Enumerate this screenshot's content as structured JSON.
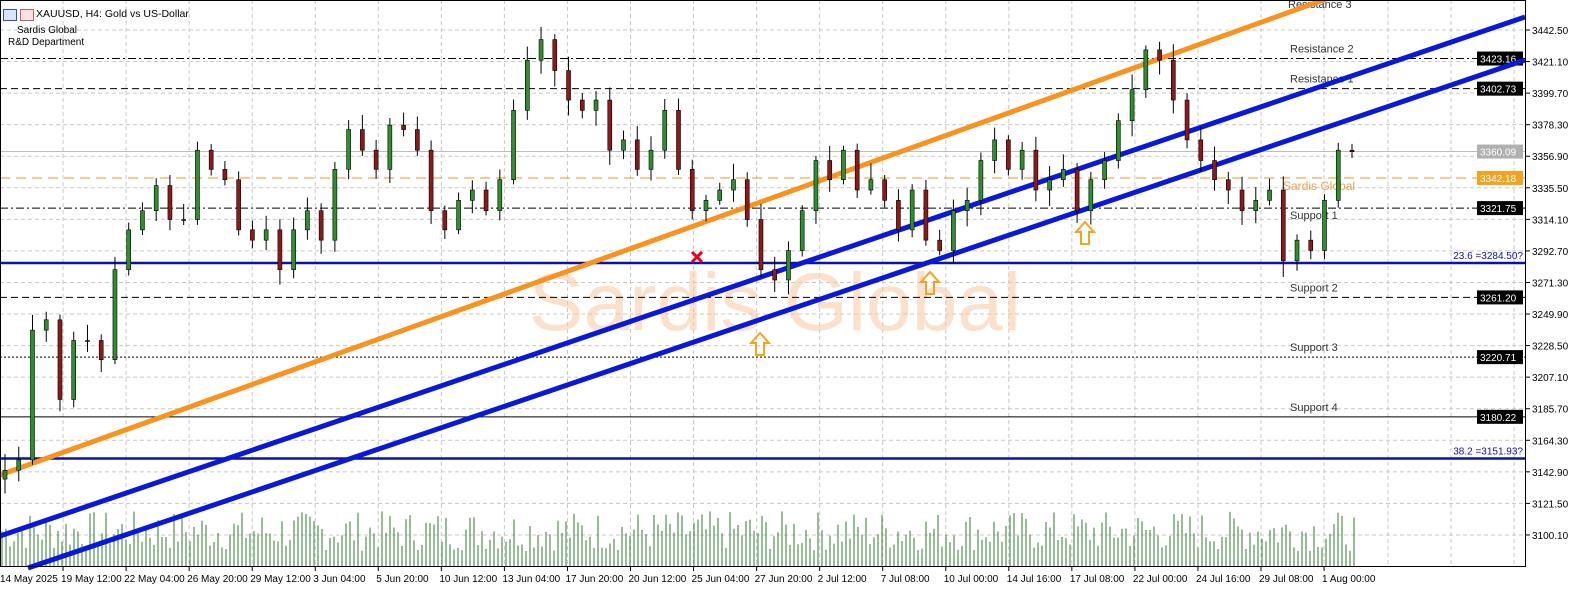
{
  "header": {
    "title": "XAUUSD, H4:  Gold vs US-Dollar",
    "line1": "Sardis Global",
    "line2": "R&D Department",
    "icons": [
      "list-icon",
      "chart-template-icon"
    ]
  },
  "watermark": "Sardis Global",
  "colors": {
    "bull": "#2f8f2f",
    "bear": "#8b1a1a",
    "trend_orange": "#f7931e",
    "trend_blue": "#0a18d8",
    "fib": "#0b12a8",
    "volume": "#2f7a2f",
    "current_price": "#bdbdbd",
    "arrow": "#f7a21e",
    "cross": "#e8001c"
  },
  "chart_data": {
    "type": "candlestick",
    "symbol": "XAUUSD",
    "timeframe": "H4",
    "ylim": [
      3090,
      3458
    ],
    "grid": true,
    "y_ticks": [
      "3442.50",
      "3421.10",
      "3399.70",
      "3378.30",
      "3356.90",
      "3335.50",
      "3314.10",
      "3292.70",
      "3271.30",
      "3249.90",
      "3228.50",
      "3207.10",
      "3185.70",
      "3164.30",
      "3142.90",
      "3121.50",
      "3100.10"
    ],
    "x_ticks": [
      "14 May 2025",
      "19 May 12:00",
      "22 May 04:00",
      "26 May 20:00",
      "29 May 12:00",
      "3 Jun 04:00",
      "5 Jun 20:00",
      "10 Jun 12:00",
      "13 Jun 04:00",
      "17 Jun 20:00",
      "20 Jun 12:00",
      "25 Jun 04:00",
      "27 Jun 20:00",
      "2 Jul 12:00",
      "7 Jul 08:00",
      "10 Jul 00:00",
      "14 Jul 16:00",
      "17 Jul 08:00",
      "22 Jul 00:00",
      "24 Jul 16:00",
      "29 Jul 08:00",
      "1 Aug 00:00"
    ],
    "closes": [
      3144,
      3151,
      3239,
      3246,
      3192,
      3232,
      3232,
      3219,
      3280,
      3307,
      3320,
      3337,
      3314,
      3314,
      3361,
      3348,
      3341,
      3307,
      3300,
      3307,
      3280,
      3307,
      3320,
      3300,
      3348,
      3375,
      3361,
      3348,
      3378,
      3375,
      3361,
      3320,
      3307,
      3327,
      3334,
      3320,
      3341,
      3388,
      3422,
      3436,
      3415,
      3395,
      3388,
      3395,
      3361,
      3368,
      3348,
      3361,
      3388,
      3348,
      3320,
      3327,
      3334,
      3341,
      3314,
      3280,
      3273,
      3293,
      3320,
      3354,
      3341,
      3361,
      3334,
      3341,
      3327,
      3307,
      3334,
      3300,
      3293,
      3320,
      3327,
      3354,
      3368,
      3348,
      3361,
      3334,
      3341,
      3348,
      3320,
      3341,
      3354,
      3381,
      3402,
      3429,
      3422,
      3395,
      3368,
      3354,
      3341,
      3334,
      3320,
      3327,
      3334,
      3286,
      3300,
      3293,
      3327,
      3361,
      3360
    ],
    "price_levels": [
      {
        "label": "Resistance 3",
        "value": null
      },
      {
        "label": "Resistance 2",
        "value": "3423.16",
        "style": "dashdot"
      },
      {
        "label": "Resistance 1",
        "value": "3402.73",
        "style": "dashed"
      },
      {
        "label": "Sardis Global",
        "value": "3342.18",
        "style": "orange-dashed"
      },
      {
        "label": "Support 1",
        "value": "3321.75",
        "style": "dashdot"
      },
      {
        "label": "Support 2",
        "value": "3261.20",
        "style": "dashed"
      },
      {
        "label": "Support 3",
        "value": "3220.71",
        "style": "dotted"
      },
      {
        "label": "Support 4",
        "value": "3180.22",
        "style": "solid"
      }
    ],
    "fib_levels": [
      {
        "label": "23.6 =3284.50?",
        "value": 3284.5
      },
      {
        "label": "38.2 =3151.93?",
        "value": 3151.93
      }
    ],
    "current_price": "3360.09"
  }
}
